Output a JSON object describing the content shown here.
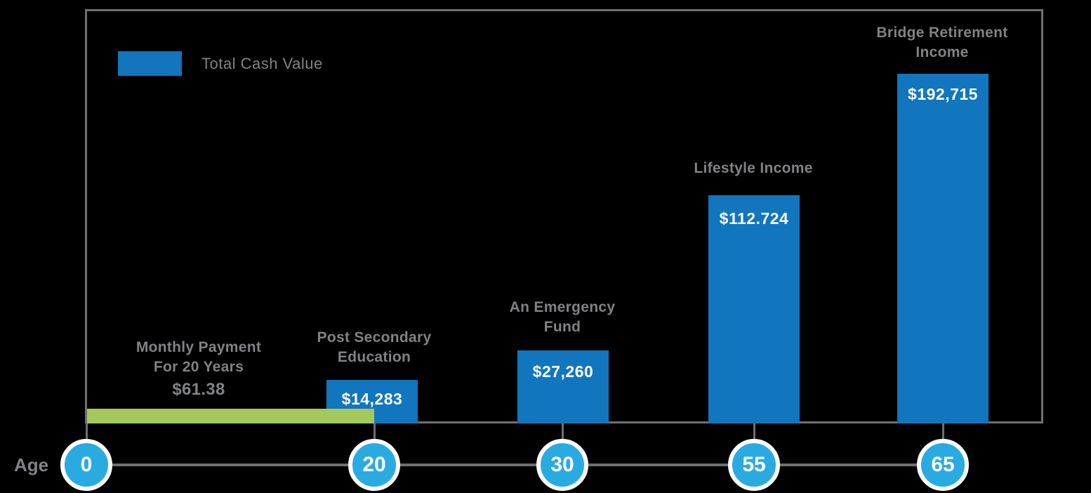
{
  "colors": {
    "background": "#000000",
    "bar_blue": "#1176bd",
    "circle_blue": "#29abe2",
    "payment_green": "#a4c85c",
    "line_gray": "#6e6f72",
    "text_gray": "#808285",
    "value_white": "#ffffff"
  },
  "legend": {
    "label": "Total Cash Value"
  },
  "age_axis": {
    "label": "Age",
    "ticks": [
      "0",
      "20",
      "30",
      "55",
      "65"
    ]
  },
  "payment": {
    "label": "Monthly Payment\nFor 20 Years",
    "value": "$61.38",
    "span_ages": [
      0,
      20
    ]
  },
  "bars": [
    {
      "age": "20",
      "label": "Post Secondary\nEducation",
      "value": "$14,283"
    },
    {
      "age": "30",
      "label": "An Emergency\nFund",
      "value": "$27,260"
    },
    {
      "age": "55",
      "label": "Lifestyle Income",
      "value": "$112.724"
    },
    {
      "age": "65",
      "label": "Bridge Retirement\nIncome",
      "value": "$192,715"
    }
  ],
  "chart_data": {
    "type": "bar",
    "title": "",
    "xlabel": "Age",
    "ylabel": "Total Cash Value",
    "categories": [
      "0",
      "20",
      "30",
      "55",
      "65"
    ],
    "series": [
      {
        "name": "Total Cash Value",
        "values": [
          null,
          14283,
          27260,
          112724,
          192715
        ]
      },
      {
        "name": "Monthly Payment For 20 Years",
        "note": "green horizontal band from age 0 to 20",
        "monthly_payment": 61.38
      }
    ],
    "annotations": [
      "Monthly Payment For 20 Years $61.38",
      "Post Secondary Education $14,283",
      "An Emergency Fund $27,260",
      "Lifestyle Income $112.724",
      "Bridge Retirement Income $192,715"
    ],
    "legend_position": "top-left",
    "grid": false
  }
}
